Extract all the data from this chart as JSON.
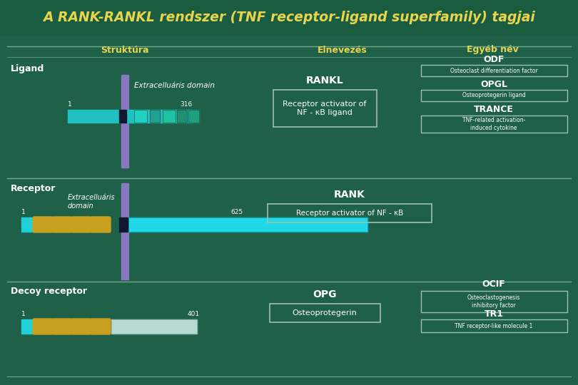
{
  "title": "A RANK-RANKL rendszer (TNF receptor-ligand superfamily) tagjai",
  "title_color": "#e8d44d",
  "bg_color": "#1a5c40",
  "text_white": "#ffffff",
  "text_yellow": "#e8d44d",
  "box_border": "#a0c0b0",
  "section_line_color": "#70a888",
  "gold_color": "#c8a020",
  "col_headers": [
    "Struktúra",
    "Elnevezés",
    "Egyéb név"
  ],
  "ligand_label": "Ligand",
  "ligand_extra_label": "Extracelluáris domain",
  "ligand_num1": "1",
  "ligand_num2": "316",
  "ligand_name": "RANKL",
  "ligand_name2": "Receptor activator of\nNF - κB ligand",
  "ligand_egyeb": [
    "ODF",
    "Osteoclast differentiation factor",
    "OPGL",
    "Osteoprotegerin ligand",
    "TRANCE",
    "TNF-related activation-\ninduced cytokine"
  ],
  "receptor_label": "Receptor",
  "receptor_extra_label": "Extracelluáris\ndomain",
  "receptor_num1": "1",
  "receptor_num2": "625",
  "receptor_name": "RANK",
  "receptor_name2": "Receptor activator of NF - κB",
  "decoy_label": "Decoy receptor",
  "decoy_num1": "1",
  "decoy_num2": "401",
  "decoy_name": "OPG",
  "decoy_name2": "Osteoprotegerin",
  "decoy_egyeb": [
    "OCIF",
    "Osteoclastogenesis\ninhibitory factor",
    "TR1",
    "TNF receptor-like molecule 1"
  ]
}
